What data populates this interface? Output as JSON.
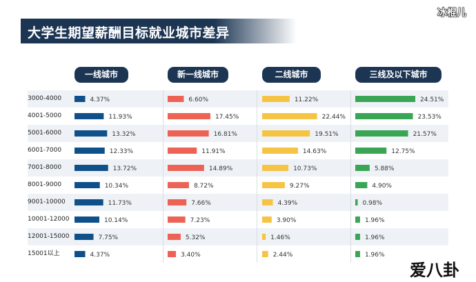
{
  "watermark": "冰棍儿",
  "logo": "爱八卦",
  "chart_data": {
    "type": "bar",
    "title": "大学生期望薪酬目标就业城市差异",
    "categories": [
      "3000-4000",
      "4001-5000",
      "5001-6000",
      "6001-7000",
      "7001-8000",
      "8001-9000",
      "9001-10000",
      "10001-12000",
      "12001-15000",
      "15001以上"
    ],
    "series": [
      {
        "name": "一线城市",
        "color": "#0f4f8a",
        "values": [
          4.37,
          11.93,
          13.32,
          12.33,
          13.72,
          10.34,
          11.73,
          10.14,
          7.75,
          4.37
        ],
        "labels": [
          "4.37%",
          "11.93%",
          "13.32%",
          "12.33%",
          "13.72%",
          "10.34%",
          "11.73%",
          "10.14%",
          "7.75%",
          "4.37%"
        ]
      },
      {
        "name": "新一线城市",
        "color": "#ec6356",
        "values": [
          6.6,
          17.45,
          16.81,
          11.91,
          14.89,
          8.72,
          7.66,
          7.23,
          5.32,
          3.4
        ],
        "labels": [
          "6.60%",
          "17.45%",
          "16.81%",
          "11.91%",
          "14.89%",
          "8.72%",
          "7.66%",
          "7.23%",
          "5.32%",
          "3.40%"
        ]
      },
      {
        "name": "二线城市",
        "color": "#f6c445",
        "values": [
          11.22,
          22.44,
          19.51,
          14.63,
          10.73,
          9.27,
          4.39,
          3.9,
          1.46,
          2.44
        ],
        "labels": [
          "11.22%",
          "22.44%",
          "19.51%",
          "14.63%",
          "10.73%",
          "9.27%",
          "4.39%",
          "3.90%",
          "1.46%",
          "2.44%"
        ]
      },
      {
        "name": "三线及以下城市",
        "color": "#3aa655",
        "values": [
          24.51,
          23.53,
          21.57,
          12.75,
          5.88,
          4.9,
          0.98,
          1.96,
          1.96,
          1.96
        ],
        "labels": [
          "24.51%",
          "23.53%",
          "21.57%",
          "12.75%",
          "5.88%",
          "4.90%",
          "0.98%",
          "1.96%",
          "1.96%",
          "1.96%"
        ]
      }
    ]
  }
}
